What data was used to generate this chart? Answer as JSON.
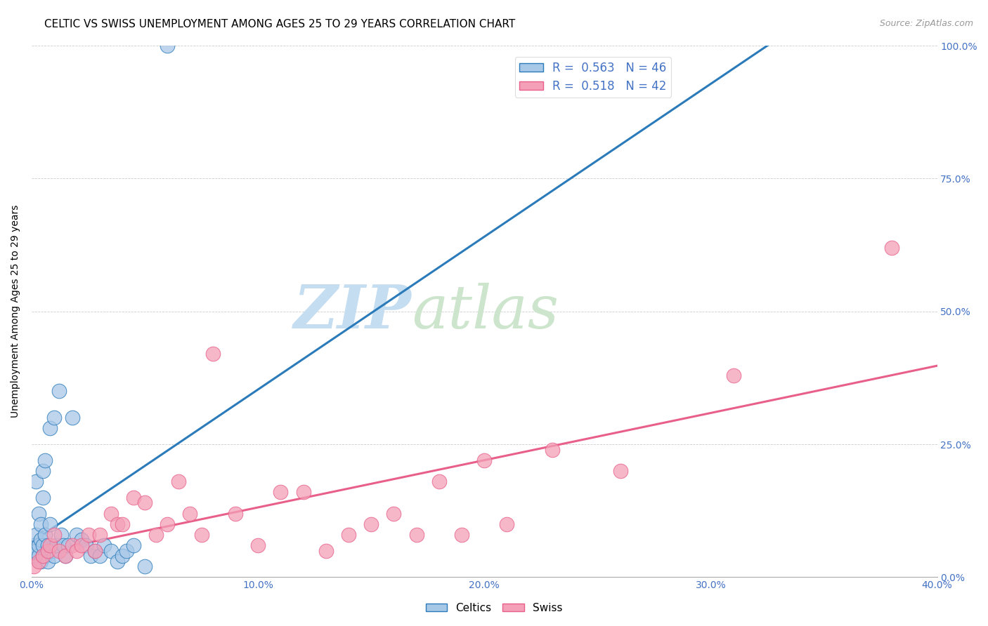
{
  "title": "CELTIC VS SWISS UNEMPLOYMENT AMONG AGES 25 TO 29 YEARS CORRELATION CHART",
  "source": "Source: ZipAtlas.com",
  "ylabel": "Unemployment Among Ages 25 to 29 years",
  "xlim": [
    0.0,
    0.4
  ],
  "ylim": [
    0.0,
    1.0
  ],
  "xticks": [
    0.0,
    0.1,
    0.2,
    0.3,
    0.4
  ],
  "yticks": [
    0.0,
    0.25,
    0.5,
    0.75,
    1.0
  ],
  "xticklabels": [
    "0.0%",
    "10.0%",
    "20.0%",
    "30.0%",
    "40.0%"
  ],
  "yticklabels": [
    "0.0%",
    "25.0%",
    "50.0%",
    "75.0%",
    "100.0%"
  ],
  "celtics_color": "#a8c8e8",
  "swiss_color": "#f4a0b8",
  "celtics_R": 0.563,
  "celtics_N": 46,
  "swiss_R": 0.518,
  "swiss_N": 42,
  "celtics_line_color": "#2b7bba",
  "swiss_line_color": "#e8608a",
  "watermark_zip": "ZIP",
  "watermark_atlas": "atlas",
  "watermark_color_zip": "#c8dff0",
  "watermark_color_atlas": "#d8ead8",
  "celtics_x": [
    0.001,
    0.001,
    0.002,
    0.002,
    0.002,
    0.003,
    0.003,
    0.003,
    0.004,
    0.004,
    0.004,
    0.005,
    0.005,
    0.005,
    0.005,
    0.006,
    0.006,
    0.006,
    0.007,
    0.007,
    0.008,
    0.008,
    0.009,
    0.01,
    0.01,
    0.011,
    0.012,
    0.013,
    0.014,
    0.015,
    0.016,
    0.018,
    0.02,
    0.022,
    0.024,
    0.026,
    0.028,
    0.03,
    0.032,
    0.035,
    0.038,
    0.04,
    0.042,
    0.045,
    0.05,
    0.06
  ],
  "celtics_y": [
    0.04,
    0.06,
    0.05,
    0.08,
    0.18,
    0.04,
    0.06,
    0.12,
    0.03,
    0.07,
    0.1,
    0.04,
    0.06,
    0.15,
    0.2,
    0.04,
    0.08,
    0.22,
    0.03,
    0.06,
    0.1,
    0.28,
    0.05,
    0.04,
    0.3,
    0.06,
    0.35,
    0.08,
    0.06,
    0.04,
    0.06,
    0.3,
    0.08,
    0.07,
    0.06,
    0.04,
    0.05,
    0.04,
    0.06,
    0.05,
    0.03,
    0.04,
    0.05,
    0.06,
    0.02,
    1.0
  ],
  "swiss_x": [
    0.001,
    0.003,
    0.005,
    0.007,
    0.008,
    0.01,
    0.012,
    0.015,
    0.018,
    0.02,
    0.022,
    0.025,
    0.028,
    0.03,
    0.035,
    0.038,
    0.04,
    0.045,
    0.05,
    0.055,
    0.06,
    0.065,
    0.07,
    0.075,
    0.08,
    0.09,
    0.1,
    0.11,
    0.12,
    0.13,
    0.14,
    0.15,
    0.16,
    0.17,
    0.18,
    0.19,
    0.2,
    0.21,
    0.23,
    0.26,
    0.31,
    0.38
  ],
  "swiss_y": [
    0.02,
    0.03,
    0.04,
    0.05,
    0.06,
    0.08,
    0.05,
    0.04,
    0.06,
    0.05,
    0.06,
    0.08,
    0.05,
    0.08,
    0.12,
    0.1,
    0.1,
    0.15,
    0.14,
    0.08,
    0.1,
    0.18,
    0.12,
    0.08,
    0.42,
    0.12,
    0.06,
    0.16,
    0.16,
    0.05,
    0.08,
    0.1,
    0.12,
    0.08,
    0.18,
    0.08,
    0.22,
    0.1,
    0.24,
    0.2,
    0.38,
    0.62
  ],
  "title_fontsize": 11,
  "axis_label_fontsize": 10,
  "tick_fontsize": 10,
  "legend_fontsize": 12
}
